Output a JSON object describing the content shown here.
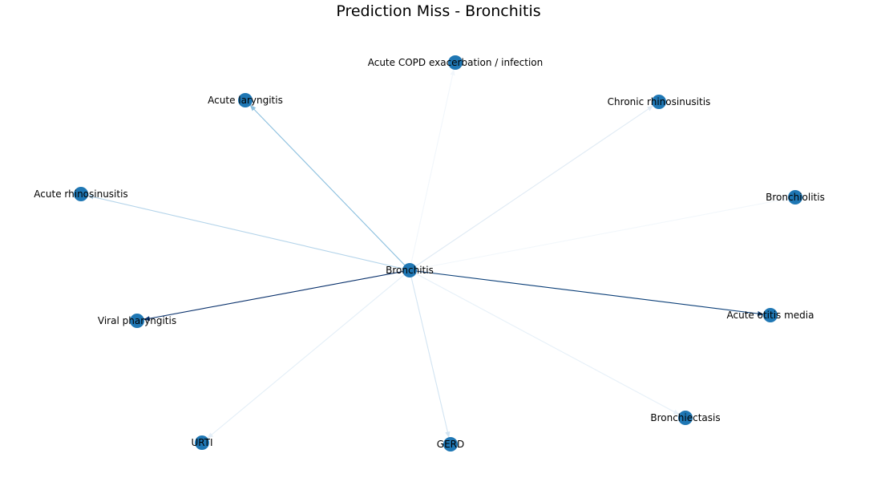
{
  "title": "Prediction Miss - Bronchitis",
  "colors": {
    "node": "#1f77b4",
    "label": "#000000",
    "background": "#ffffff"
  },
  "center": "Bronchitis",
  "nodes": [
    {
      "id": "bronchitis",
      "label": "Bronchitis"
    },
    {
      "id": "acute-copd",
      "label": "Acute COPD exacerbation / infection"
    },
    {
      "id": "acute-laryngitis",
      "label": "Acute laryngitis"
    },
    {
      "id": "chronic-rhinosinusitis",
      "label": "Chronic rhinosinusitis"
    },
    {
      "id": "acute-rhinosinusitis",
      "label": "Acute rhinosinusitis"
    },
    {
      "id": "bronchiolitis",
      "label": "Bronchiolitis"
    },
    {
      "id": "viral-pharyngitis",
      "label": "Viral pharyngitis"
    },
    {
      "id": "acute-otitis-media",
      "label": "Acute otitis media"
    },
    {
      "id": "bronchiectasis",
      "label": "Bronchiectasis"
    },
    {
      "id": "urti",
      "label": "URTI"
    },
    {
      "id": "gerd",
      "label": "GERD"
    }
  ],
  "edges": [
    {
      "source": "bronchitis",
      "target": "acute-copd",
      "color": "#f1f6fb"
    },
    {
      "source": "bronchitis",
      "target": "acute-laryngitis",
      "color": "#8bbfde"
    },
    {
      "source": "bronchitis",
      "target": "chronic-rhinosinusitis",
      "color": "#dfeaf4"
    },
    {
      "source": "bronchitis",
      "target": "acute-rhinosinusitis",
      "color": "#b4d4ea"
    },
    {
      "source": "bronchitis",
      "target": "bronchiolitis",
      "color": "#f2f7fb"
    },
    {
      "source": "bronchitis",
      "target": "viral-pharyngitis",
      "color": "#08306b"
    },
    {
      "source": "bronchitis",
      "target": "acute-otitis-media",
      "color": "#0b3f78"
    },
    {
      "source": "bronchitis",
      "target": "bronchiectasis",
      "color": "#e6f0f8"
    },
    {
      "source": "bronchitis",
      "target": "urti",
      "color": "#e3eef7"
    },
    {
      "source": "bronchitis",
      "target": "gerd",
      "color": "#d2e4f2"
    }
  ]
}
